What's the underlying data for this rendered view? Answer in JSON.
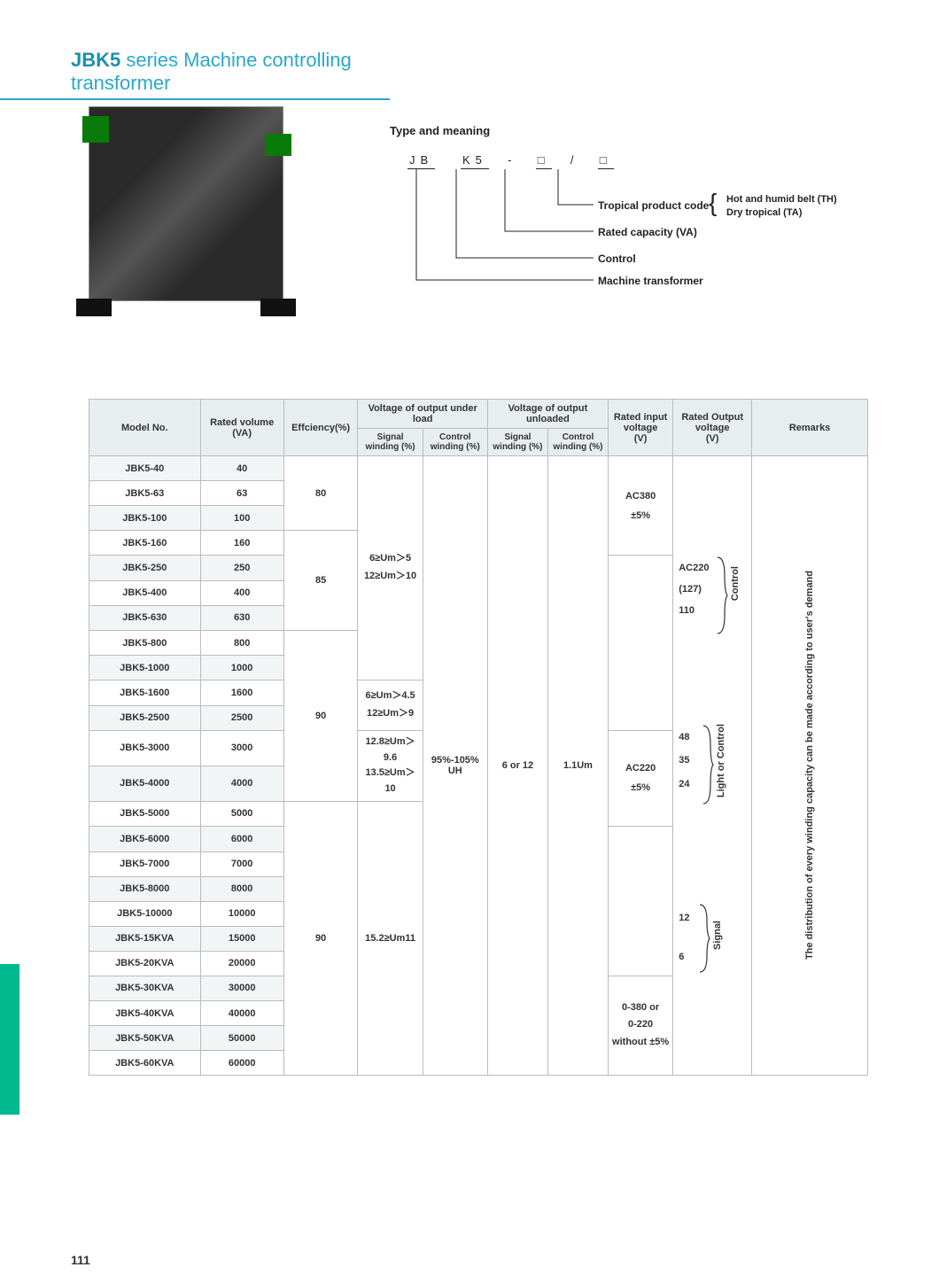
{
  "title": {
    "bold": "JBK5",
    "rest": " series Machine controlling transformer"
  },
  "type_meaning": {
    "heading": "Type and meaning",
    "code_parts": [
      "JB",
      "K5",
      "-",
      "□",
      "/",
      "□"
    ],
    "labels": {
      "tropical": "Tropical product code",
      "tropical_opts": [
        "Hot and humid belt (TH)",
        "Dry tropical (TA)"
      ],
      "rated_cap": "Rated capacity (VA)",
      "control": "Control",
      "machine": "Machine transformer"
    }
  },
  "table": {
    "headers": {
      "model": "Model No.",
      "rated_volume": "Rated volume\n(VA)",
      "efficiency": "Effciency(%)",
      "v_under_load": "Voltage of output under load",
      "v_unloaded": "Voltage of output unloaded",
      "signal_w": "Signal\nwinding (%)",
      "control_w": "Control\nwinding (%)",
      "rated_input": "Rated input\nvoltage\n(V)",
      "rated_output": "Rated Output\nvoltage\n(V)",
      "remarks": "Remarks"
    },
    "rows": [
      {
        "model": "JBK5-40",
        "va": "40"
      },
      {
        "model": "JBK5-63",
        "va": "63"
      },
      {
        "model": "JBK5-100",
        "va": "100"
      },
      {
        "model": "JBK5-160",
        "va": "160"
      },
      {
        "model": "JBK5-250",
        "va": "250"
      },
      {
        "model": "JBK5-400",
        "va": "400"
      },
      {
        "model": "JBK5-630",
        "va": "630"
      },
      {
        "model": "JBK5-800",
        "va": "800"
      },
      {
        "model": "JBK5-1000",
        "va": "1000"
      },
      {
        "model": "JBK5-1600",
        "va": "1600"
      },
      {
        "model": "JBK5-2500",
        "va": "2500"
      },
      {
        "model": "JBK5-3000",
        "va": "3000"
      },
      {
        "model": "JBK5-4000",
        "va": "4000"
      },
      {
        "model": "JBK5-5000",
        "va": "5000"
      },
      {
        "model": "JBK5-6000",
        "va": "6000"
      },
      {
        "model": "JBK5-7000",
        "va": "7000"
      },
      {
        "model": "JBK5-8000",
        "va": "8000"
      },
      {
        "model": "JBK5-10000",
        "va": "10000"
      },
      {
        "model": "JBK5-15KVA",
        "va": "15000"
      },
      {
        "model": "JBK5-20KVA",
        "va": "20000"
      },
      {
        "model": "JBK5-30KVA",
        "va": "30000"
      },
      {
        "model": "JBK5-40KVA",
        "va": "40000"
      },
      {
        "model": "JBK5-50KVA",
        "va": "50000"
      },
      {
        "model": "JBK5-60KVA",
        "va": "60000"
      }
    ],
    "efficiency": {
      "g1": "80",
      "g2": "85",
      "g3": "90",
      "g4": "90"
    },
    "signal_load": {
      "g1": "6≥Um＞5\n12≥Um＞10",
      "g2": "6≥Um＞4.5\n12≥Um＞9",
      "g3": "12.8≥Um＞9.6\n13.5≥Um＞10",
      "g4": "15.2≥Um11"
    },
    "control_load": "95%-105%\nUH",
    "signal_unload": "6 or 12",
    "control_unload": "1.1Um",
    "input_voltage": {
      "a": "AC380\n±5%",
      "b": "AC220\n±5%",
      "c": "0-380 or\n0-220\nwithout ±5%"
    },
    "output_voltage": {
      "control_vals": [
        "AC220",
        "(127)",
        "110"
      ],
      "control_label": "Control",
      "light_vals": [
        "48",
        "35",
        "24"
      ],
      "light_label": "Light or Control",
      "signal_vals": [
        "12",
        "6"
      ],
      "signal_label": "Signal"
    },
    "remarks_text": "The distribution of every winding capacity can be made according to user's demand"
  },
  "page_number": "111"
}
